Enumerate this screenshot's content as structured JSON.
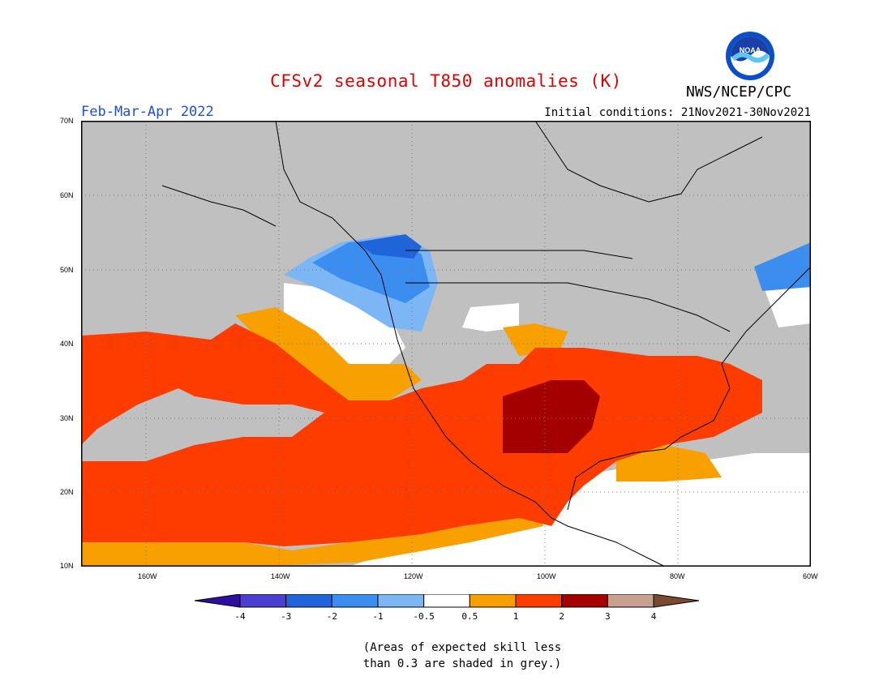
{
  "header": {
    "title": "CFSv2 seasonal T850 anomalies (K)",
    "period": "Feb-Mar-Apr 2022",
    "initial_conditions": "Initial conditions: 21Nov2021-30Nov2021",
    "agency": "NWS/NCEP/CPC",
    "logo_text": "NOAA"
  },
  "map": {
    "lat_labels": [
      "70N",
      "60N",
      "50N",
      "40N",
      "30N",
      "20N",
      "10N"
    ],
    "lon_labels": [
      "160W",
      "140W",
      "120W",
      "100W",
      "80W",
      "60W"
    ],
    "grid": true,
    "colors": {
      "land_grey": "#c0c0c0",
      "ocean_grey": "#c0c0c0"
    }
  },
  "colorbar": {
    "labels": [
      "-4",
      "-3",
      "-2",
      "-1",
      "-0.5",
      "0.5",
      "1",
      "2",
      "3",
      "4"
    ],
    "colors": [
      "#2d0ea0",
      "#4b3fd0",
      "#1f64d8",
      "#3b8ef0",
      "#7cb6f4",
      "#ffffff",
      "#f7a000",
      "#ff3c00",
      "#a50000",
      "#c8a090",
      "#7a4a30"
    ]
  },
  "footnote": {
    "line1": "(Areas of expected skill less",
    "line2": "than 0.3 are shaded in grey.)"
  }
}
